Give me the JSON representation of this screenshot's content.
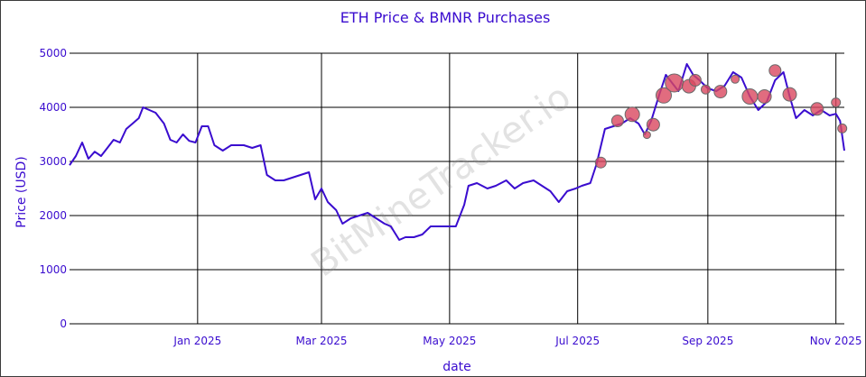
{
  "chart_data": {
    "type": "line",
    "title": "ETH Price & BMNR Purchases",
    "xlabel": "date",
    "ylabel": "Price (USD)",
    "ylim": [
      0,
      5000
    ],
    "xlim": [
      "2024-11-01",
      "2025-11-05"
    ],
    "grid": true,
    "watermark": "BitMineTracker.io",
    "colors": {
      "line": "#3a0ccf",
      "bubble": "#d9475f",
      "text": "#3a0ccf"
    },
    "x_ticks": [
      {
        "date": "2025-01-01",
        "label": "Jan 2025"
      },
      {
        "date": "2025-03-01",
        "label": "Mar 2025"
      },
      {
        "date": "2025-05-01",
        "label": "May 2025"
      },
      {
        "date": "2025-07-01",
        "label": "Jul 2025"
      },
      {
        "date": "2025-09-01",
        "label": "Sep 2025"
      },
      {
        "date": "2025-11-01",
        "label": "Nov 2025"
      }
    ],
    "y_ticks": [
      {
        "value": 0,
        "label": "0"
      },
      {
        "value": 1000,
        "label": "1000"
      },
      {
        "value": 2000,
        "label": "2000"
      },
      {
        "value": 3000,
        "label": "3000"
      },
      {
        "value": 4000,
        "label": "4000"
      },
      {
        "value": 5000,
        "label": "5000"
      }
    ],
    "series": [
      {
        "type": "line",
        "x": [
          "2024-11-01",
          "2024-11-04",
          "2024-11-07",
          "2024-11-10",
          "2024-11-13",
          "2024-11-16",
          "2024-11-19",
          "2024-11-22",
          "2024-11-25",
          "2024-11-28",
          "2024-12-01",
          "2024-12-04",
          "2024-12-06",
          "2024-12-09",
          "2024-12-12",
          "2024-12-16",
          "2024-12-19",
          "2024-12-22",
          "2024-12-25",
          "2024-12-28",
          "2024-12-31",
          "2025-01-03",
          "2025-01-06",
          "2025-01-09",
          "2025-01-13",
          "2025-01-17",
          "2025-01-20",
          "2025-01-23",
          "2025-01-27",
          "2025-01-31",
          "2025-02-03",
          "2025-02-07",
          "2025-02-11",
          "2025-02-15",
          "2025-02-19",
          "2025-02-23",
          "2025-02-26",
          "2025-03-01",
          "2025-03-04",
          "2025-03-08",
          "2025-03-11",
          "2025-03-15",
          "2025-03-19",
          "2025-03-23",
          "2025-03-27",
          "2025-03-31",
          "2025-04-03",
          "2025-04-07",
          "2025-04-10",
          "2025-04-14",
          "2025-04-18",
          "2025-04-22",
          "2025-04-26",
          "2025-04-30",
          "2025-05-04",
          "2025-05-08",
          "2025-05-10",
          "2025-05-14",
          "2025-05-19",
          "2025-05-23",
          "2025-05-28",
          "2025-06-01",
          "2025-06-05",
          "2025-06-10",
          "2025-06-14",
          "2025-06-18",
          "2025-06-22",
          "2025-06-26",
          "2025-06-30",
          "2025-07-03",
          "2025-07-07",
          "2025-07-10",
          "2025-07-14",
          "2025-07-18",
          "2025-07-22",
          "2025-07-26",
          "2025-07-30",
          "2025-08-02",
          "2025-08-05",
          "2025-08-09",
          "2025-08-12",
          "2025-08-15",
          "2025-08-18",
          "2025-08-22",
          "2025-08-25",
          "2025-08-28",
          "2025-09-01",
          "2025-09-05",
          "2025-09-09",
          "2025-09-13",
          "2025-09-17",
          "2025-09-21",
          "2025-09-25",
          "2025-09-29",
          "2025-10-03",
          "2025-10-07",
          "2025-10-10",
          "2025-10-13",
          "2025-10-17",
          "2025-10-21",
          "2025-10-25",
          "2025-10-29",
          "2025-11-01",
          "2025-11-03",
          "2025-11-05"
        ],
        "y": [
          2930,
          3100,
          3350,
          3050,
          3180,
          3100,
          3250,
          3400,
          3350,
          3600,
          3700,
          3800,
          4000,
          3950,
          3900,
          3700,
          3400,
          3350,
          3500,
          3380,
          3350,
          3650,
          3650,
          3300,
          3200,
          3300,
          3300,
          3300,
          3250,
          3300,
          2750,
          2650,
          2650,
          2700,
          2750,
          2800,
          2300,
          2500,
          2250,
          2100,
          1850,
          1950,
          2000,
          2050,
          1950,
          1850,
          1800,
          1550,
          1600,
          1600,
          1650,
          1800,
          1800,
          1800,
          1800,
          2200,
          2550,
          2600,
          2500,
          2550,
          2650,
          2500,
          2600,
          2650,
          2550,
          2450,
          2250,
          2450,
          2500,
          2550,
          2600,
          2950,
          3600,
          3650,
          3700,
          3800,
          3700,
          3500,
          3750,
          4250,
          4600,
          4450,
          4300,
          4800,
          4600,
          4500,
          4350,
          4300,
          4400,
          4650,
          4550,
          4200,
          3950,
          4100,
          4500,
          4650,
          4200,
          3800,
          3950,
          3850,
          3950,
          3850,
          3880,
          3750,
          3200
        ]
      },
      {
        "type": "scatter",
        "name": "",
        "x": [
          "2025-07-12",
          "2025-07-20",
          "2025-07-27",
          "2025-08-03",
          "2025-08-06",
          "2025-08-11",
          "2025-08-16",
          "2025-08-23",
          "2025-08-26",
          "2025-08-31",
          "2025-09-07",
          "2025-09-14",
          "2025-09-21",
          "2025-09-28",
          "2025-10-03",
          "2025-10-10",
          "2025-10-23",
          "2025-11-01",
          "2025-11-04"
        ],
        "y": [
          2980,
          3750,
          3870,
          3490,
          3680,
          4220,
          4450,
          4390,
          4500,
          4330,
          4290,
          4520,
          4200,
          4200,
          4680,
          4240,
          3970,
          4090,
          3610
        ],
        "size": [
          12,
          13,
          16,
          8,
          14,
          17,
          20,
          15,
          13,
          10,
          14,
          9,
          17,
          15,
          13,
          15,
          14,
          10,
          10
        ]
      }
    ]
  }
}
